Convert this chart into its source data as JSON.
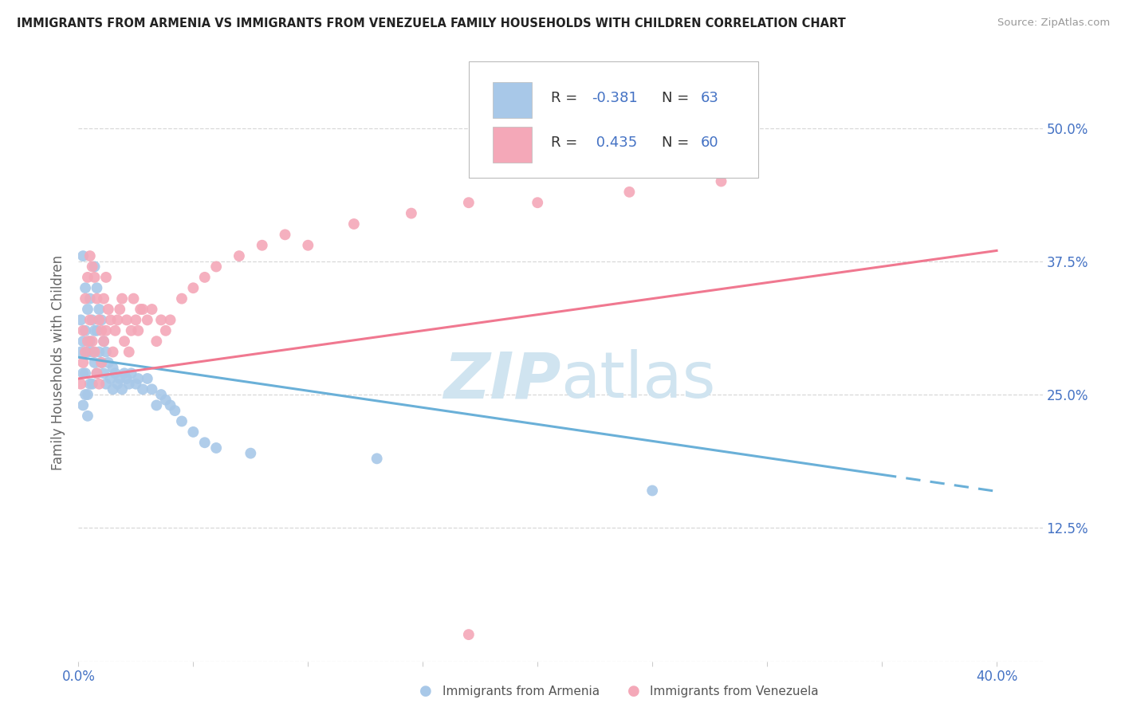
{
  "title": "IMMIGRANTS FROM ARMENIA VS IMMIGRANTS FROM VENEZUELA FAMILY HOUSEHOLDS WITH CHILDREN CORRELATION CHART",
  "source": "Source: ZipAtlas.com",
  "armenia_R": -0.381,
  "armenia_N": 63,
  "venezuela_R": 0.435,
  "venezuela_N": 60,
  "armenia_color": "#a8c8e8",
  "venezuela_color": "#f4a8b8",
  "armenia_line_color": "#6ab0d8",
  "venezuela_line_color": "#f07890",
  "background_color": "#ffffff",
  "grid_color": "#d8d8d8",
  "watermark_color": "#d0e4f0",
  "xlim": [
    0.0,
    0.4
  ],
  "ylim": [
    0.0,
    0.54
  ],
  "armenia_x": [
    0.001,
    0.001,
    0.002,
    0.002,
    0.002,
    0.002,
    0.003,
    0.003,
    0.003,
    0.003,
    0.004,
    0.004,
    0.004,
    0.004,
    0.005,
    0.005,
    0.005,
    0.006,
    0.006,
    0.006,
    0.007,
    0.007,
    0.007,
    0.008,
    0.008,
    0.008,
    0.009,
    0.009,
    0.01,
    0.01,
    0.011,
    0.011,
    0.012,
    0.012,
    0.013,
    0.014,
    0.015,
    0.015,
    0.016,
    0.017,
    0.018,
    0.019,
    0.02,
    0.021,
    0.022,
    0.023,
    0.025,
    0.026,
    0.028,
    0.03,
    0.032,
    0.034,
    0.036,
    0.038,
    0.04,
    0.042,
    0.045,
    0.05,
    0.055,
    0.06,
    0.075,
    0.13,
    0.25
  ],
  "armenia_y": [
    0.29,
    0.32,
    0.3,
    0.27,
    0.38,
    0.24,
    0.31,
    0.35,
    0.27,
    0.25,
    0.33,
    0.29,
    0.25,
    0.23,
    0.34,
    0.3,
    0.26,
    0.32,
    0.29,
    0.26,
    0.37,
    0.31,
    0.28,
    0.35,
    0.31,
    0.27,
    0.33,
    0.29,
    0.32,
    0.28,
    0.3,
    0.27,
    0.29,
    0.26,
    0.28,
    0.265,
    0.275,
    0.255,
    0.27,
    0.26,
    0.265,
    0.255,
    0.27,
    0.265,
    0.26,
    0.27,
    0.26,
    0.265,
    0.255,
    0.265,
    0.255,
    0.24,
    0.25,
    0.245,
    0.24,
    0.235,
    0.225,
    0.215,
    0.205,
    0.2,
    0.195,
    0.19,
    0.16
  ],
  "venezuela_x": [
    0.001,
    0.002,
    0.002,
    0.003,
    0.003,
    0.004,
    0.004,
    0.005,
    0.005,
    0.006,
    0.006,
    0.007,
    0.007,
    0.008,
    0.008,
    0.009,
    0.009,
    0.01,
    0.01,
    0.011,
    0.011,
    0.012,
    0.012,
    0.013,
    0.014,
    0.015,
    0.016,
    0.017,
    0.018,
    0.019,
    0.02,
    0.021,
    0.022,
    0.023,
    0.024,
    0.025,
    0.026,
    0.027,
    0.028,
    0.03,
    0.032,
    0.034,
    0.036,
    0.038,
    0.04,
    0.045,
    0.05,
    0.055,
    0.06,
    0.07,
    0.08,
    0.09,
    0.1,
    0.12,
    0.145,
    0.17,
    0.2,
    0.24,
    0.28,
    0.17
  ],
  "venezuela_y": [
    0.26,
    0.31,
    0.28,
    0.34,
    0.29,
    0.36,
    0.3,
    0.38,
    0.32,
    0.37,
    0.3,
    0.36,
    0.29,
    0.34,
    0.27,
    0.32,
    0.26,
    0.31,
    0.28,
    0.34,
    0.3,
    0.36,
    0.31,
    0.33,
    0.32,
    0.29,
    0.31,
    0.32,
    0.33,
    0.34,
    0.3,
    0.32,
    0.29,
    0.31,
    0.34,
    0.32,
    0.31,
    0.33,
    0.33,
    0.32,
    0.33,
    0.3,
    0.32,
    0.31,
    0.32,
    0.34,
    0.35,
    0.36,
    0.37,
    0.38,
    0.39,
    0.4,
    0.39,
    0.41,
    0.42,
    0.43,
    0.43,
    0.44,
    0.45,
    0.025
  ]
}
